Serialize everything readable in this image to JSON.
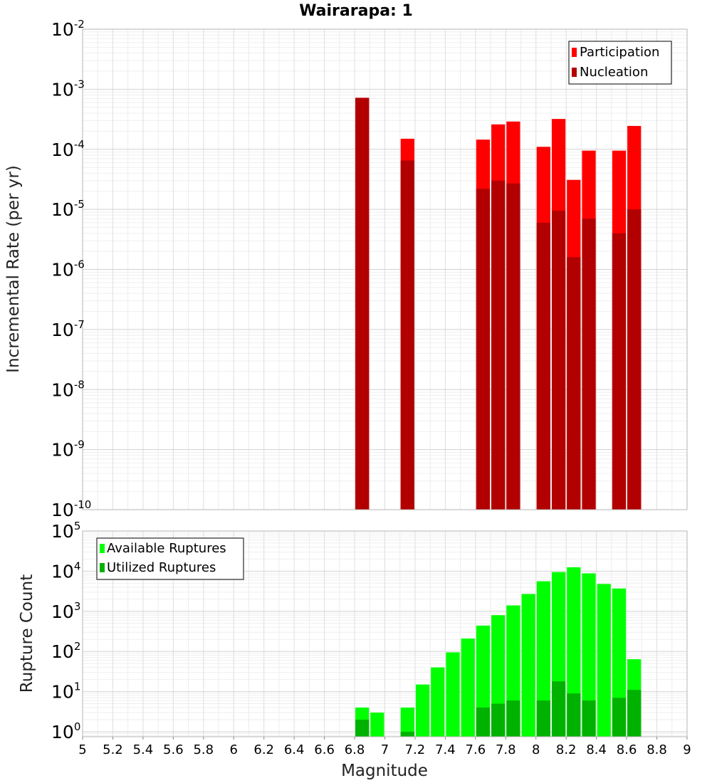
{
  "title": "Wairarapa: 1",
  "chart_data": [
    {
      "type": "bar",
      "panel": "rates",
      "title": "Wairarapa: 1",
      "xlabel": "",
      "ylabel": "Incremental Rate (per yr)",
      "log_y": true,
      "xlim": [
        5,
        9
      ],
      "ylim": [
        1e-10,
        0.01
      ],
      "y_tick_exponents": [
        -10,
        -9,
        -8,
        -7,
        -6,
        -5,
        -4,
        -3,
        -2
      ],
      "grid": true,
      "legend": "top-right",
      "x": [
        6.85,
        7.15,
        7.65,
        7.75,
        7.85,
        8.05,
        8.15,
        8.25,
        8.35,
        8.55,
        8.65
      ],
      "series": [
        {
          "name": "Participation",
          "color": "#ff0000",
          "values": [
            0.00072,
            0.00015,
            0.000145,
            0.00026,
            0.00029,
            0.00011,
            0.00032,
            3.1e-05,
            9.5e-05,
            9.5e-05,
            0.000245
          ]
        },
        {
          "name": "Nucleation",
          "color": "#b20000",
          "values": [
            0.00072,
            6.5e-05,
            2.2e-05,
            3e-05,
            2.7e-05,
            6e-06,
            9.5e-06,
            1.6e-06,
            7e-06,
            4e-06,
            1e-05
          ]
        }
      ]
    },
    {
      "type": "bar",
      "panel": "counts",
      "xlabel": "Magnitude",
      "ylabel": "Rupture Count",
      "log_y": true,
      "xlim": [
        5,
        9
      ],
      "ylim": [
        0.75,
        100000
      ],
      "y_tick_exponents": [
        0,
        1,
        2,
        3,
        4,
        5
      ],
      "x_ticks": [
        "5",
        "5.2",
        "5.4",
        "5.6",
        "5.8",
        "6",
        "6.2",
        "6.4",
        "6.6",
        "6.8",
        "7",
        "7.2",
        "7.4",
        "7.6",
        "7.8",
        "8",
        "8.2",
        "8.4",
        "8.6",
        "8.8",
        "9"
      ],
      "grid": true,
      "legend": "top-left",
      "x": [
        6.85,
        6.95,
        7.15,
        7.25,
        7.35,
        7.45,
        7.55,
        7.65,
        7.75,
        7.85,
        7.95,
        8.05,
        8.15,
        8.25,
        8.35,
        8.45,
        8.55,
        8.65
      ],
      "series": [
        {
          "name": "Available Ruptures",
          "color": "#00ff00",
          "values": [
            4,
            3,
            4,
            15,
            40,
            95,
            210,
            440,
            800,
            1400,
            2700,
            5600,
            9500,
            12500,
            8800,
            4800,
            3700,
            64
          ]
        },
        {
          "name": "Utilized Ruptures",
          "color": "#00b200",
          "values": [
            2,
            0,
            1,
            0,
            0,
            0,
            0,
            4,
            5,
            6,
            0,
            6,
            18,
            9,
            6,
            0,
            7,
            11
          ]
        }
      ]
    }
  ]
}
